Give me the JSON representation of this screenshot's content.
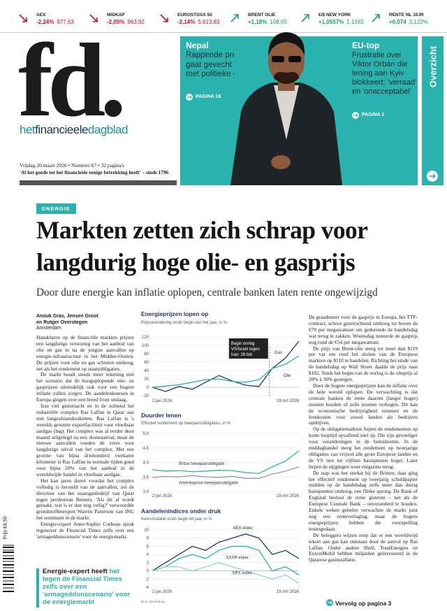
{
  "ticker": [
    {
      "name": "AEX",
      "change": "-2,24%",
      "value": "977,63",
      "direction": "down",
      "color": "#c8102e"
    },
    {
      "name": "MIDKAP",
      "change": "-2,05%",
      "value": "963,92",
      "direction": "down",
      "color": "#c8102e"
    },
    {
      "name": "EUROSTOXX 50",
      "change": "-2,14%",
      "value": "5.613,83",
      "direction": "down",
      "color": "#c8102e"
    },
    {
      "name": "BRENT OLIE",
      "change": "+1,18%",
      "value": "108,65",
      "direction": "up",
      "color": "#1a9e6a"
    },
    {
      "name": "€/$ NEW YORK",
      "change": "+1,0557%",
      "value": "1,1583",
      "direction": "up",
      "color": "#1a9e6a"
    },
    {
      "name": "RENTE NL 10JR",
      "change": "+0,074",
      "value": "3,122%",
      "direction": "up",
      "color": "#1a9e6a"
    }
  ],
  "masthead": {
    "logo": "fd.",
    "name": [
      "het",
      "financieele",
      "dagblad"
    ],
    "edition": "Vrijdag 20 maart 2026 • Nummer 67 • 32 pagina's",
    "motto": "'Al het goede tot het financieele eenige betrekking heeft' – sinds 1796",
    "price": "Prijs €4,50"
  },
  "teasers": [
    {
      "kicker": "Nepal",
      "headline": "Rappende premier gaat gevecht aan met politieke elite",
      "link": "PAGINA 16"
    },
    {
      "kicker": "EU-top",
      "headline": "Frustratie over Viktor Orbán die lening aan Kyiv blokkeert: 'verraad' en 'onacceptabel'",
      "link": "PAGINA 2"
    }
  ],
  "sidebar": "Overzicht",
  "article": {
    "tag": "ENERGIE",
    "headline": "Markten zetten zich schrap voor langdurig hoge olie- en gasprijs",
    "subheadline": "Door dure energie kan inflatie oplopen, centrale banken laten rente ongewijzigd",
    "byline": [
      "Anouk Gras, Jensen Groot",
      "en Rutger Overstegen",
      "Amsterdam"
    ],
    "left": [
      "Handelaren op de financiële markten prijzen een langdurige verstoring van het aanbod van olie en gas in na de jongste aanvallen op energie-infrastructuur in het Midden-Oosten. De prijzen voor olie en gas schieten omhoog, net als het rendement op staatsobligaties.",
      "De markt houdt steeds meer rekening met het scenario dat de hoogoplopende olie- en gasprijzen uiteindelijk ook voor een hogere inflatie zullen zorgen. De aandelenkoersen in Europa gingen over een breed front omlaag.",
      "Iran viel gisternacht en in de ochtend het industriële complex Ras Laffan in Qatar aan met langeafstandsraketten. Ras Laffan is 's werelds grootste exportfaciliteit voor vloeibaar aardgas (lng). Het complex was al eerder deze maand stilgelegd na een droneaanval, maar de nieuwe aanvallen voeden de vrees voor langdurige uitval van het complex. Met een grootte van bijna driehonderd vierkante kilometer is Ras Laffan in normale tijden goed voor bijna 20% van het aanbod in de wereldwijde handel in vloeibaar aardgas.",
      "Het kan jaren duren voordat het complex volledig is hersteld van de aanvallen, zei de directeur van het staatsgasbedrijf van Qatar tegen persbureau Reuters. 'Als dit al wordt geraakt, wat is er dan nog veilig?' verwoordde grondstoffenexpert Warren Patterson van ING het sentiment in de markt.",
      "Energie-expert Anne-Sophie Corbeau sprak tegenover de Financial Times zelfs over een 'armageddonscenario' voor de energiemarkt."
    ],
    "quote": {
      "lead": "Energie-expert heeft",
      "text": "het tegen de Financial Times zelfs over een 'armageddonscenario' voor de energiemarkt"
    },
    "right": [
      "De graadmeter voor de gasprijs in Europa, het TTF-contract, schoot gisterochtend omhoog tot boven de €70 per megawattuur om gedurende de handelsdag wat terug te zakken. Woensdag noteerde de gasprijs nog rond de €54 per megawattuur.",
      "De prijs van Brent-olie steeg tot meer dan $119 per vat om rond het sluiten van de Europese markten op $110 te handelen. Richting het einde van de handelsdag op Wall Street daalde de prijs naar $102. Sinds het begin van de oorlog is de olieprijs al 20% à 30% gestegen.",
      "Door de hogere energieprijzen kan de inflatie over de hele wereld oplopen. De verwachting is dat centrale banken de rente daarom (langer hoger) moeten houden of zelfs moeten verhogen. Dit kan de economische bedrijvigheid remmen en de leenkosten voor zowel landen als bedrijven opdrijven.",
      "Op de obligatiemarkten liepen de rendementen op korte looptijd opvallend snel op. Die zijn gevoeliger voor veranderingen in de beleidsrente. In de middaghandel steeg het rendement op tweejarige obligaties van vrijwel alle grote Europese landen en de VS tien tot vijftien basispunten hoger. Later liepen de stijgingen weer enigszins terug.",
      "De stap was het sterkst bij de Britten; daar ging het effectief rendement op tweejarig schuldpapier midden op de handelsdag zelfs meer dan dertig basispunten omhoog, een flinke sprong. De Bank of England besloot de rente gisteren – net als de Europese Centrale Bank – onveranderd te houden. Enkele weken geleden verwachtte de markt juist nog een renteverlaging, maar de hogere energieprijzen hebben die voorspelling tenietgedaan.",
      "De beleggers wijzen erop dat er een wereldwijd tekort aan gas kan ontstaan door de aanval op Ras Laffan. Onder andere Shell, TotalEnergies en ExxonMobil hebben miljarden geïnvesteerd in de Qatarese gasinstallatie."
    ],
    "continued": "Vervolg op pagina 3"
  },
  "chart_data": [
    {
      "type": "line",
      "title": "Energieprijzen lopen op",
      "subtitle": "Prijsverandering sinds begin van het jaar, in %",
      "categories": [
        "2 jan 2026",
        null,
        null,
        null,
        null,
        null,
        null,
        null,
        null,
        null,
        null,
        "19 mrt 2026"
      ],
      "ylim": [
        -20,
        120
      ],
      "yticks": [
        -20,
        0,
        20,
        40,
        60,
        80,
        100,
        120
      ],
      "grid": true,
      "series": [
        {
          "name": "Gas",
          "color": "#1f3a68",
          "values": [
            0,
            -10,
            2,
            -5,
            12,
            28,
            15,
            5,
            2,
            45,
            70,
            110
          ]
        },
        {
          "name": "Olie",
          "color": "#2ab3ae",
          "values": [
            0,
            3,
            6,
            12,
            18,
            20,
            14,
            12,
            18,
            45,
            55,
            75
          ]
        }
      ],
      "annotation": [
        "Begin oorlog",
        "VS/Israël tegen",
        "Iran: 28 feb"
      ]
    },
    {
      "type": "line",
      "title": "Duurder lenen",
      "subtitle": "Effectief rendement op tweejaarsobligaties, in %",
      "categories": [
        "2 jan 2026",
        null,
        null,
        null,
        null,
        null,
        null,
        null,
        null,
        null,
        null,
        "19 mrt 2026"
      ],
      "ylim": [
        3,
        5
      ],
      "yticks": [
        {
          "value": 3,
          "label": "3,0"
        },
        {
          "value": 3.5,
          "label": "3,5"
        },
        {
          "value": 4,
          "label": "4,0"
        },
        {
          "value": 4.5,
          "label": "4,5"
        },
        {
          "value": 5,
          "label": "5,0"
        }
      ],
      "grid": true,
      "series": [
        {
          "name": "Britse tweejaarsobligatie",
          "color": "#2ab3ae",
          "values": [
            3.75,
            3.7,
            3.72,
            3.68,
            3.7,
            3.73,
            3.72,
            3.65,
            3.62,
            3.85,
            4.05,
            4.4
          ]
        },
        {
          "name": "Amerikaanse tweejaarsobligatie",
          "color": "#9a9a9a",
          "values": [
            3.48,
            3.52,
            3.5,
            3.55,
            3.5,
            3.48,
            3.52,
            3.45,
            3.45,
            3.6,
            3.7,
            3.85
          ]
        }
      ]
    },
    {
      "type": "line",
      "title": "Aandelenindices onder druk",
      "subtitle": "Koersmutatie sinds begin dit jaar, in %",
      "categories": [
        "2 jan 2026",
        null,
        null,
        null,
        null,
        null,
        null,
        null,
        null,
        null,
        null,
        "19 mrt 2026"
      ],
      "ylim": [
        -4,
        10
      ],
      "yticks": [
        -4,
        -2,
        0,
        2,
        4,
        6,
        8,
        10
      ],
      "grid": true,
      "series": [
        {
          "name": "AEX-index",
          "color": "#1f3a68",
          "values": [
            0,
            2,
            4,
            6,
            5,
            7,
            8,
            9,
            8,
            4,
            5,
            3
          ]
        },
        {
          "name": "SXXP-index",
          "color": "#2ab3ae",
          "values": [
            0,
            1,
            3,
            4,
            3,
            5,
            6,
            6,
            5,
            0,
            1,
            -1
          ]
        },
        {
          "name": "SPX-index",
          "color": "#8fd3d0",
          "values": [
            0,
            1,
            1,
            0,
            1,
            2,
            1,
            0,
            -1,
            -2,
            -1,
            -3
          ]
        }
      ],
      "source": "Bron: Bloomberg"
    }
  ]
}
